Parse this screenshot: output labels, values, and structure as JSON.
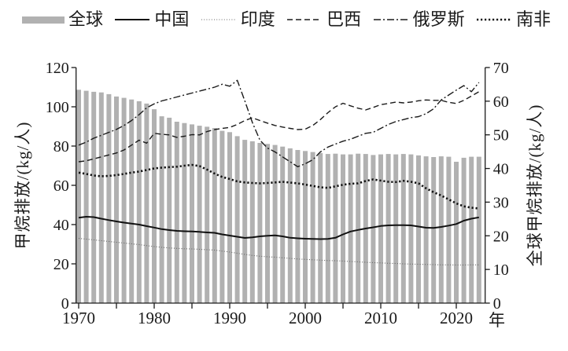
{
  "chart_data": {
    "type": "bar+line combo",
    "x_axis": {
      "suffix": "年",
      "minor_ticks": [
        1970,
        1975,
        1980,
        1985,
        1990,
        1995,
        2000,
        2005,
        2010,
        2015,
        2020
      ],
      "labeled_ticks": [
        1970,
        1980,
        1990,
        2000,
        2010,
        2020
      ]
    },
    "left_axis": {
      "title": "甲烷排放/(kg/人)",
      "min": 0,
      "max": 120,
      "step": 20,
      "tick_labels": [
        "0",
        "20",
        "40",
        "60",
        "80",
        "100",
        "120"
      ]
    },
    "right_axis": {
      "title": "全球甲烷排放/(kg/人)",
      "min": 0,
      "max": 70,
      "step": 10,
      "tick_labels": [
        "0",
        "10",
        "20",
        "30",
        "40",
        "50",
        "60",
        "70"
      ]
    },
    "years": [
      1970,
      1971,
      1972,
      1973,
      1974,
      1975,
      1976,
      1977,
      1978,
      1979,
      1980,
      1981,
      1982,
      1983,
      1984,
      1985,
      1986,
      1987,
      1988,
      1989,
      1990,
      1991,
      1992,
      1993,
      1994,
      1995,
      1996,
      1997,
      1998,
      1999,
      2000,
      2001,
      2002,
      2003,
      2004,
      2005,
      2006,
      2007,
      2008,
      2009,
      2010,
      2011,
      2012,
      2013,
      2014,
      2015,
      2016,
      2017,
      2018,
      2019,
      2020,
      2021,
      2022,
      2023
    ],
    "bar_color": "#b1b1b1",
    "legend_position": "top",
    "grid": false,
    "series": [
      {
        "id": "global",
        "name": "全球",
        "type": "bar",
        "axis": "right",
        "style": "bar",
        "color": "#b1b1b1",
        "values": [
          63.4,
          63.1,
          62.8,
          62.6,
          62.1,
          61.4,
          61.0,
          60.5,
          60.0,
          59.3,
          57.6,
          55.5,
          55.1,
          53.9,
          53.5,
          53.1,
          52.7,
          52.4,
          52.0,
          51.2,
          50.8,
          49.6,
          48.5,
          48.1,
          47.6,
          47.3,
          47.0,
          46.5,
          46.0,
          45.5,
          45.2,
          44.9,
          44.6,
          44.3,
          44.4,
          44.2,
          44.2,
          44.4,
          44.3,
          44.0,
          44.2,
          44.3,
          44.2,
          44.3,
          44.2,
          43.9,
          43.6,
          43.4,
          43.6,
          43.5,
          42.0,
          43.2,
          43.5,
          43.5
        ]
      },
      {
        "id": "china",
        "name": "中国",
        "type": "line",
        "axis": "left",
        "style": "solid",
        "color": "#111111",
        "values": [
          43.5,
          44.0,
          43.8,
          43.0,
          42.3,
          41.6,
          41.0,
          40.5,
          40.0,
          39.2,
          38.5,
          37.7,
          37.2,
          36.8,
          36.6,
          36.5,
          36.3,
          36.0,
          35.8,
          35.0,
          34.4,
          33.8,
          33.2,
          33.5,
          34.0,
          34.3,
          34.5,
          34.0,
          33.3,
          33.0,
          32.8,
          32.7,
          32.6,
          32.7,
          33.3,
          35.0,
          36.5,
          37.3,
          38.0,
          38.6,
          39.3,
          39.6,
          39.7,
          39.7,
          39.6,
          39.0,
          38.4,
          38.3,
          38.8,
          39.5,
          40.3,
          42.0,
          43.0,
          43.7
        ]
      },
      {
        "id": "india",
        "name": "印度",
        "type": "line",
        "axis": "left",
        "style": "fine-dot",
        "color": "#666666",
        "values": [
          33.0,
          32.6,
          32.2,
          31.8,
          31.4,
          31.0,
          30.6,
          30.2,
          29.8,
          29.3,
          28.8,
          28.4,
          28.1,
          27.9,
          27.7,
          27.6,
          27.4,
          27.2,
          27.0,
          26.5,
          26.0,
          25.4,
          24.8,
          24.3,
          23.9,
          23.6,
          23.4,
          23.1,
          22.8,
          22.5,
          22.3,
          22.1,
          21.9,
          21.7,
          21.6,
          21.4,
          21.2,
          21.0,
          20.8,
          20.6,
          20.5,
          20.3,
          20.2,
          20.0,
          19.9,
          19.8,
          19.7,
          19.6,
          19.5,
          19.5,
          19.4,
          19.4,
          19.5,
          19.5
        ]
      },
      {
        "id": "brazil",
        "name": "巴西",
        "type": "line",
        "axis": "left",
        "style": "dash",
        "color": "#1a1a1a",
        "values": [
          72.0,
          72.5,
          73.5,
          74.5,
          75.5,
          76.5,
          78.0,
          80.5,
          83.0,
          81.5,
          86.5,
          86.0,
          85.7,
          84.4,
          85.0,
          85.8,
          85.7,
          87.4,
          88.4,
          89.0,
          89.5,
          91.0,
          93.0,
          94.4,
          93.0,
          91.7,
          90.5,
          89.7,
          89.0,
          88.4,
          88.6,
          90.5,
          93.5,
          97.0,
          100.0,
          101.8,
          100.5,
          99.3,
          98.4,
          99.7,
          101.1,
          101.7,
          102.4,
          102.0,
          102.4,
          103.1,
          103.5,
          103.3,
          103.3,
          102.3,
          101.7,
          103.3,
          105.5,
          107.7
        ]
      },
      {
        "id": "russia",
        "name": "俄罗斯",
        "type": "line",
        "axis": "left",
        "style": "dash-dot",
        "color": "#1a1a1a",
        "values": [
          80.5,
          82.0,
          84.0,
          85.5,
          87.0,
          88.5,
          90.5,
          93.0,
          96.0,
          99.5,
          101.5,
          103.0,
          104.0,
          105.0,
          106.0,
          107.0,
          108.0,
          109.0,
          110.0,
          111.5,
          110.5,
          113.5,
          103.0,
          92.0,
          83.0,
          79.0,
          77.0,
          74.5,
          72.0,
          69.5,
          71.0,
          73.0,
          77.0,
          79.5,
          81.0,
          82.5,
          83.5,
          85.0,
          86.5,
          87.0,
          89.0,
          91.0,
          92.5,
          93.5,
          94.5,
          95.0,
          96.5,
          99.0,
          103.5,
          106.0,
          108.5,
          110.8,
          107.7,
          112.4
        ]
      },
      {
        "id": "south-africa",
        "name": "南非",
        "type": "line",
        "axis": "left",
        "style": "bold-dot",
        "color": "#111111",
        "values": [
          66.5,
          65.8,
          65.0,
          64.6,
          64.8,
          65.2,
          65.8,
          66.5,
          67.0,
          67.8,
          68.6,
          69.0,
          69.3,
          69.5,
          70.0,
          70.4,
          69.8,
          68.0,
          66.0,
          64.3,
          63.2,
          62.0,
          61.5,
          61.2,
          61.0,
          61.2,
          61.5,
          61.8,
          61.4,
          61.0,
          60.4,
          59.7,
          59.0,
          58.7,
          59.5,
          60.3,
          60.8,
          61.0,
          62.2,
          63.0,
          62.4,
          61.8,
          61.7,
          62.3,
          61.8,
          61.0,
          58.5,
          56.5,
          54.8,
          52.8,
          50.8,
          49.3,
          48.6,
          48.2
        ]
      }
    ]
  }
}
